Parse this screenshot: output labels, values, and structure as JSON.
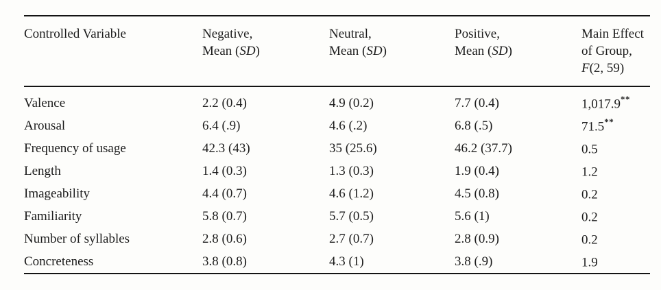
{
  "table": {
    "header": {
      "col1": "Controlled Variable",
      "col2_line1": "Negative,",
      "col3_line1": "Neutral,",
      "col4_line1": "Positive,",
      "mean_pre": "Mean (",
      "mean_sd": "SD",
      "mean_post": ")",
      "col5_line1": "Main Effect",
      "col5_line2": "of Group,",
      "col5_f": "F",
      "col5_df": "(2, 59)"
    },
    "rows": [
      {
        "variable": "Valence",
        "negative": "2.2 (0.4)",
        "neutral": "4.9 (0.2)",
        "positive": "7.7 (0.4)",
        "main_effect": "1,017.9",
        "sig": "**"
      },
      {
        "variable": "Arousal",
        "negative": "6.4 (.9)",
        "neutral": "4.6 (.2)",
        "positive": "6.8 (.5)",
        "main_effect": "71.5",
        "sig": "**"
      },
      {
        "variable": "Frequency of usage",
        "negative": "42.3 (43)",
        "neutral": "35 (25.6)",
        "positive": "46.2 (37.7)",
        "main_effect": "0.5",
        "sig": ""
      },
      {
        "variable": "Length",
        "negative": "1.4 (0.3)",
        "neutral": "1.3 (0.3)",
        "positive": "1.9 (0.4)",
        "main_effect": "1.2",
        "sig": ""
      },
      {
        "variable": "Imageability",
        "negative": "4.4 (0.7)",
        "neutral": "4.6 (1.2)",
        "positive": "4.5 (0.8)",
        "main_effect": "0.2",
        "sig": ""
      },
      {
        "variable": "Familiarity",
        "negative": "5.8 (0.7)",
        "neutral": "5.7 (0.5)",
        "positive": "5.6 (1)",
        "main_effect": "0.2",
        "sig": ""
      },
      {
        "variable": "Number of syllables",
        "negative": "2.8 (0.6)",
        "neutral": "2.7 (0.7)",
        "positive": "2.8 (0.9)",
        "main_effect": "0.2",
        "sig": ""
      },
      {
        "variable": "Concreteness",
        "negative": "3.8 (0.8)",
        "neutral": "4.3 (1)",
        "positive": "3.8 (.9)",
        "main_effect": "1.9",
        "sig": ""
      }
    ]
  },
  "colors": {
    "text": "#1c1c1c",
    "rule": "#141414",
    "background": "#fdfdfb"
  }
}
